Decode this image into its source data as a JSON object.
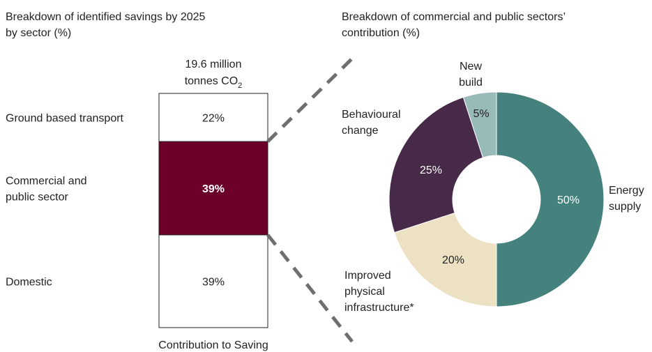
{
  "left_title_line1": "Breakdown of identified savings by 2025",
  "left_title_line2": "by sector (%)",
  "right_title_line1": "Breakdown of commercial and public sectors’",
  "right_title_line2": "contribution (%)",
  "stack_header_line1": "19.6 million",
  "stack_header_line2_prefix": "tonnes  CO",
  "stack_header_subscript": "2",
  "stack_xlabel": "Contribution to Saving",
  "chart_data": [
    {
      "type": "bar",
      "stacked": true,
      "title": "Breakdown of identified savings by 2025 by sector (%)",
      "xlabel": "Contribution to Saving",
      "total_label": "19.6 million tonnes CO2",
      "categories": [
        "Ground based transport",
        "Commercial and public sector",
        "Domestic"
      ],
      "category_label_lines": [
        [
          "Ground based transport"
        ],
        [
          "Commercial and",
          "public sector"
        ],
        [
          "Domestic"
        ]
      ],
      "values": [
        22,
        39,
        39
      ],
      "value_labels": [
        "22%",
        "39%",
        "39%"
      ],
      "highlight_index": 1,
      "colors": {
        "normal": "#ffffff",
        "highlight": "#6d0029",
        "border": "#222222"
      }
    },
    {
      "type": "pie",
      "donut": true,
      "title": "Breakdown of commercial and public sectors’ contribution (%)",
      "labels": [
        "Energy supply",
        "Improved physical infrastructure*",
        "Behavioural change",
        "New build"
      ],
      "label_lines": [
        [
          "Energy",
          "supply"
        ],
        [
          "Improved",
          "physical",
          "infrastructure*"
        ],
        [
          "Behavioural",
          "change"
        ],
        [
          "New",
          "build"
        ]
      ],
      "values": [
        50,
        20,
        25,
        5
      ],
      "value_labels": [
        "50%",
        "20%",
        "25%",
        "5%"
      ],
      "colors": [
        "#45827d",
        "#ede1c4",
        "#472a48",
        "#98bab8"
      ]
    }
  ]
}
